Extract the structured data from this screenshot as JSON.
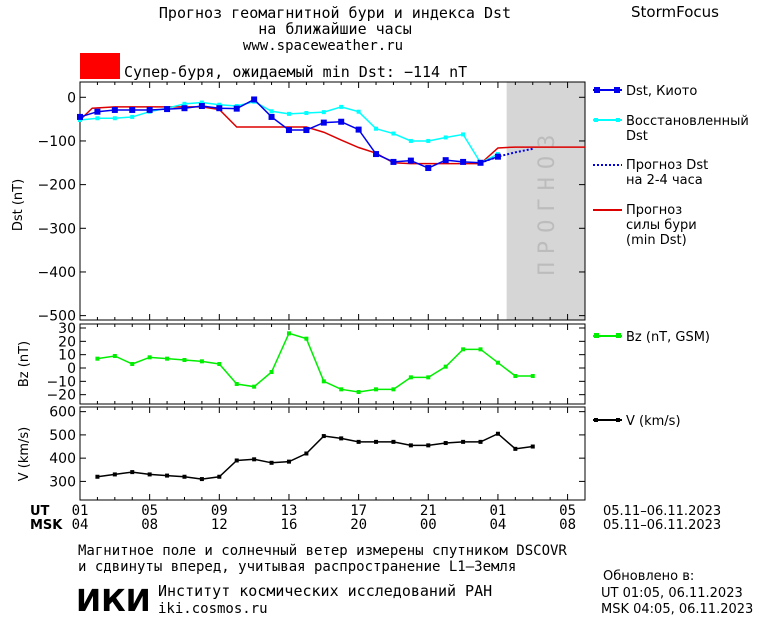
{
  "header": {
    "title_line1": "Прогноз геомагнитной бури и индекса Dst",
    "title_line2": "на ближайшие часы",
    "site": "www.spaceweather.ru",
    "brand": "StormFocus"
  },
  "alert": {
    "text": "Супер-буря, ожидаемый min Dst: −114 nT",
    "color": "#ff0000"
  },
  "forecast_zone_label": "ПРОГНОЗ",
  "chart_data": [
    {
      "id": "dst",
      "type": "line",
      "ylabel": "Dst (nT)",
      "ylim": [
        -510,
        35
      ],
      "yticks": [
        0,
        -100,
        -200,
        -300,
        -400,
        -500
      ],
      "xlim": [
        0,
        29
      ],
      "forecast_start_x": 24.5,
      "series": [
        {
          "name": "Dst, Киото",
          "color": "#0000ee",
          "style": "solid-square",
          "x": [
            0,
            1,
            2,
            3,
            4,
            5,
            6,
            7,
            8,
            9,
            10,
            11,
            12,
            13,
            14,
            15,
            16,
            17,
            18,
            19,
            20,
            21,
            22,
            23,
            24
          ],
          "y": [
            -45,
            -33,
            -29,
            -29,
            -29,
            -27,
            -25,
            -20,
            -25,
            -26,
            -5,
            -45,
            -75,
            -75,
            -58,
            -56,
            -74,
            -130,
            -148,
            -145,
            -162,
            -144,
            -148,
            -150,
            -136
          ]
        },
        {
          "name": "Восстановленный Dst",
          "color": "#00ffff",
          "style": "solid-square-small",
          "x": [
            0,
            1,
            2,
            3,
            4,
            5,
            6,
            7,
            8,
            9,
            10,
            11,
            12,
            13,
            14,
            15,
            16,
            17,
            18,
            19,
            20,
            21,
            22,
            23,
            24
          ],
          "y": [
            -52,
            -48,
            -48,
            -45,
            -33,
            -25,
            -15,
            -12,
            -17,
            -20,
            -10,
            -32,
            -38,
            -36,
            -34,
            -22,
            -33,
            -72,
            -83,
            -100,
            -100,
            -92,
            -85,
            -150,
            -130
          ]
        },
        {
          "name": "Прогноз Dst на 2-4 часа",
          "color": "#0000ee",
          "style": "dotted",
          "x": [
            23,
            24,
            25,
            26
          ],
          "y": [
            -150,
            -136,
            -126,
            -118
          ]
        },
        {
          "name": "Прогноз силы бури (min Dst)",
          "color": "#dd0000",
          "style": "solid",
          "x": [
            0,
            0.7,
            2,
            7,
            8,
            9,
            11,
            12,
            13,
            14,
            15,
            16,
            17,
            18,
            19,
            20,
            21,
            22,
            23,
            24,
            25,
            26,
            27,
            28,
            29
          ],
          "y": [
            -52,
            -25,
            -22,
            -22,
            -28,
            -68,
            -68,
            -68,
            -68,
            -80,
            -98,
            -115,
            -128,
            -150,
            -152,
            -152,
            -152,
            -152,
            -152,
            -116,
            -114,
            -114,
            -114,
            -114,
            -114
          ]
        }
      ]
    },
    {
      "id": "bz",
      "type": "line",
      "ylabel": "Bz (nT)",
      "ylim": [
        -27,
        33
      ],
      "yticks": [
        30,
        20,
        10,
        0,
        -10,
        -20
      ],
      "xlim": [
        0,
        29
      ],
      "series": [
        {
          "name": "Bz (nT, GSM)",
          "color": "#00ee00",
          "x": [
            1,
            2,
            3,
            4,
            5,
            6,
            7,
            8,
            9,
            10,
            11,
            12,
            13,
            14,
            15,
            16,
            17,
            18,
            19,
            20,
            21,
            22,
            23,
            24,
            25,
            26
          ],
          "y": [
            7,
            9,
            3,
            8,
            7,
            6,
            5,
            3,
            -12,
            -14,
            -3,
            26,
            22,
            -10,
            -16,
            -18,
            -16,
            -16,
            -7,
            -7,
            1,
            14,
            14,
            4,
            -6,
            -6
          ]
        }
      ]
    },
    {
      "id": "v",
      "type": "line",
      "ylabel": "V (km/s)",
      "ylim": [
        220,
        620
      ],
      "yticks": [
        600,
        500,
        400,
        300
      ],
      "xlim": [
        0,
        29
      ],
      "series": [
        {
          "name": "V (km/s)",
          "color": "#000000",
          "x": [
            1,
            2,
            3,
            4,
            5,
            6,
            7,
            8,
            9,
            10,
            11,
            12,
            13,
            14,
            15,
            16,
            17,
            18,
            19,
            20,
            21,
            22,
            23,
            24,
            25,
            26
          ],
          "y": [
            320,
            330,
            340,
            330,
            325,
            320,
            310,
            320,
            390,
            395,
            380,
            385,
            420,
            495,
            485,
            470,
            470,
            470,
            455,
            455,
            465,
            470,
            470,
            505,
            440,
            450
          ]
        }
      ]
    }
  ],
  "x_axis": {
    "ut_label": "UT",
    "msk_label": "MSK",
    "ut_ticks": [
      "01",
      "05",
      "09",
      "13",
      "17",
      "21",
      "01",
      "05"
    ],
    "msk_ticks": [
      "04",
      "08",
      "12",
      "16",
      "20",
      "00",
      "04",
      "08"
    ],
    "date_range": "05.11–06.11.2023"
  },
  "footer": {
    "note_line1": "Магнитное поле и солнечный ветер измерены спутником DSCOVR",
    "note_line2": "и сдвинуты вперед, учитывая распространение L1–Земля",
    "institute": "Институт космических исследований РАН",
    "url": "iki.cosmos.ru",
    "logo": "ИКИ",
    "updated_label": "Обновлено в:",
    "updated_ut": "UT  01:05, 06.11.2023",
    "updated_msk": "MSK 04:05, 06.11.2023"
  }
}
